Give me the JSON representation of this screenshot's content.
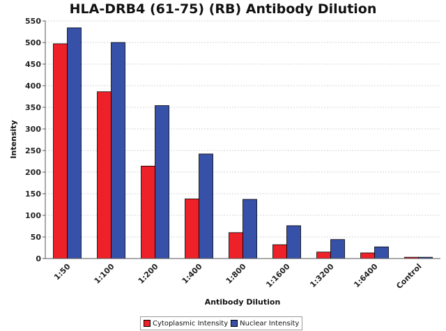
{
  "chart_data": {
    "type": "bar",
    "title": "HLA-DRB4 (61-75) (RB) Antibody Dilution",
    "xlabel": "Antibody Dilution",
    "ylabel": "Intensity",
    "ylim": [
      0,
      550
    ],
    "yticks": [
      0,
      50,
      100,
      150,
      200,
      250,
      300,
      350,
      400,
      450,
      500,
      550
    ],
    "grid": true,
    "legend_position": "bottom",
    "categories": [
      "1:50",
      "1:100",
      "1:200",
      "1:400",
      "1:800",
      "1:1600",
      "1:3200",
      "1:6400",
      "Control"
    ],
    "series": [
      {
        "name": "Cytoplasmic Intensity",
        "color": "#ee2028",
        "values": [
          497,
          386,
          214,
          138,
          60,
          32,
          15,
          13,
          3
        ]
      },
      {
        "name": "Nuclear Intensity",
        "color": "#3651a7",
        "values": [
          534,
          500,
          354,
          242,
          137,
          76,
          44,
          27,
          3
        ]
      }
    ]
  }
}
